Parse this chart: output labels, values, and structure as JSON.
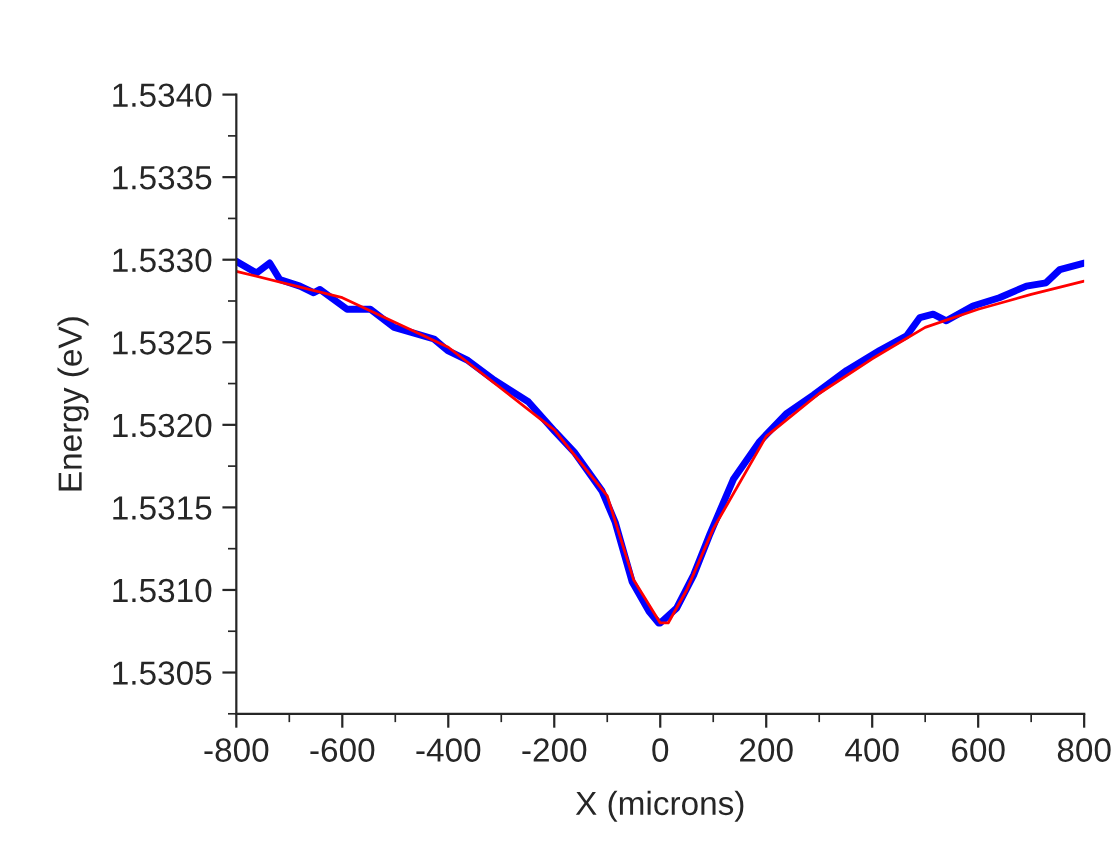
{
  "chart_data": {
    "type": "line",
    "xlabel": "X (microns)",
    "ylabel": "Energy (eV)",
    "xlim": [
      -800,
      800
    ],
    "xticks": [
      -800,
      -600,
      -400,
      -200,
      0,
      200,
      400,
      600,
      800
    ],
    "ylim": [
      1.53025,
      1.534
    ],
    "yticks": [
      {
        "value": 1.5305,
        "label": "1.5305"
      },
      {
        "value": 1.531,
        "label": "1.5310"
      },
      {
        "value": 1.5315,
        "label": "1.5315"
      },
      {
        "value": 1.532,
        "label": "1.5320"
      },
      {
        "value": 1.5325,
        "label": "1.5325"
      },
      {
        "value": 1.533,
        "label": "1.5330"
      },
      {
        "value": 1.5335,
        "label": "1.5335"
      },
      {
        "value": 1.534,
        "label": "1.5340"
      }
    ],
    "grid": false,
    "marker": "none",
    "line_style": "solid",
    "series": [
      {
        "color": "#0000ff",
        "x": [
          -800,
          -762,
          -737,
          -718,
          -680,
          -654,
          -642,
          -591,
          -547,
          -502,
          -427,
          -401,
          -363,
          -313,
          -249,
          -199,
          -161,
          -110,
          -85,
          -53,
          -21,
          -3,
          0,
          31,
          63,
          94,
          138,
          188,
          239,
          289,
          352,
          414,
          465,
          490,
          515,
          540,
          590,
          640,
          691,
          728,
          754,
          800
        ],
        "values": [
          1.53299,
          1.53292,
          1.53298,
          1.53288,
          1.53284,
          1.5328,
          1.53282,
          1.5327,
          1.5327,
          1.53259,
          1.53252,
          1.53245,
          1.53239,
          1.53227,
          1.53214,
          1.53196,
          1.53183,
          1.5316,
          1.53141,
          1.53105,
          1.53087,
          1.5308,
          1.5308,
          1.53089,
          1.53109,
          1.53134,
          1.53167,
          1.5319,
          1.53207,
          1.53218,
          1.53233,
          1.53245,
          1.53254,
          1.53265,
          1.53267,
          1.53263,
          1.53272,
          1.53277,
          1.53284,
          1.53286,
          1.53294,
          1.53298
        ]
      },
      {
        "color": "#ff0000",
        "x": [
          -800,
          -600,
          -400,
          -200,
          -100,
          -50,
          0,
          15,
          50,
          100,
          200,
          300,
          400,
          500,
          600,
          700,
          800
        ],
        "values": [
          1.53293,
          1.53277,
          1.53247,
          1.53197,
          1.53157,
          1.53106,
          1.5308,
          1.5308,
          1.531,
          1.53137,
          1.53193,
          1.53219,
          1.5324,
          1.53259,
          1.5327,
          1.53279,
          1.53287
        ]
      }
    ]
  }
}
